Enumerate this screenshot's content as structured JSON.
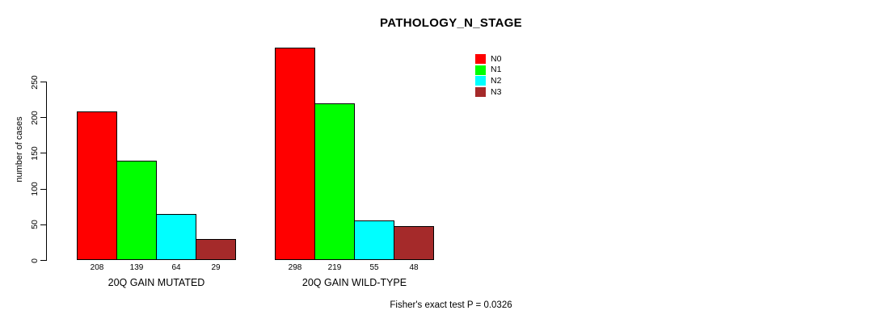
{
  "chart_data": {
    "type": "bar",
    "title": "PATHOLOGY_N_STAGE",
    "xlabel": "",
    "ylabel": "number of cases",
    "categories": [
      "20Q GAIN MUTATED",
      "20Q GAIN WILD-TYPE"
    ],
    "series": [
      {
        "name": "N0",
        "color": "#FF0000",
        "values": [
          208,
          298
        ]
      },
      {
        "name": "N1",
        "color": "#00FF00",
        "values": [
          139,
          219
        ]
      },
      {
        "name": "N2",
        "color": "#00FFFF",
        "values": [
          64,
          55
        ]
      },
      {
        "name": "N3",
        "color": "#A52A2A",
        "values": [
          29,
          48
        ]
      }
    ],
    "yticks": [
      0,
      50,
      100,
      150,
      200,
      250
    ],
    "ylim": [
      0,
      250
    ],
    "grid": false,
    "value_labels_shown": true,
    "legend_position": "top-right",
    "annotation": "Fisher's exact test P = 0.0326"
  }
}
